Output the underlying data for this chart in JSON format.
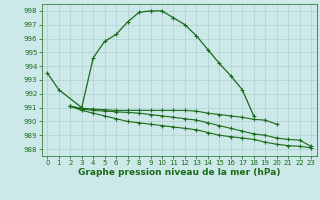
{
  "title": "Graphe pression niveau de la mer (hPa)",
  "background_color": "#cce8e8",
  "grid_color": "#b0d0d0",
  "line_color": "#1a6b1a",
  "ylim": [
    987.5,
    998.5
  ],
  "xlim": [
    -0.5,
    23.5
  ],
  "yticks": [
    988,
    989,
    990,
    991,
    992,
    993,
    994,
    995,
    996,
    997,
    998
  ],
  "xticks": [
    0,
    1,
    2,
    3,
    4,
    5,
    6,
    7,
    8,
    9,
    10,
    11,
    12,
    13,
    14,
    15,
    16,
    17,
    18,
    19,
    20,
    21,
    22,
    23
  ],
  "line1": [
    993.5,
    992.3,
    null,
    991.0,
    994.6,
    995.8,
    996.3,
    997.2,
    997.9,
    998.0,
    998.0,
    997.5,
    997.0,
    996.2,
    995.2,
    994.2,
    993.3,
    992.3,
    990.4,
    null,
    null,
    null,
    null,
    null
  ],
  "line2": [
    null,
    null,
    991.1,
    990.95,
    990.9,
    990.85,
    990.8,
    990.8,
    990.8,
    990.8,
    990.8,
    990.8,
    990.8,
    990.75,
    990.6,
    990.5,
    990.4,
    990.3,
    990.15,
    990.1,
    989.8,
    null,
    null,
    null
  ],
  "line3": [
    null,
    null,
    991.1,
    990.9,
    990.8,
    990.75,
    990.7,
    990.65,
    990.6,
    990.5,
    990.4,
    990.3,
    990.2,
    990.1,
    989.9,
    989.7,
    989.5,
    989.3,
    989.1,
    989.0,
    988.8,
    988.7,
    988.65,
    988.2
  ],
  "line4": [
    null,
    null,
    991.1,
    990.8,
    990.6,
    990.4,
    990.2,
    990.0,
    989.9,
    989.8,
    989.7,
    989.6,
    989.5,
    989.4,
    989.2,
    989.0,
    988.9,
    988.8,
    988.7,
    988.5,
    988.35,
    988.25,
    988.2,
    988.1
  ]
}
